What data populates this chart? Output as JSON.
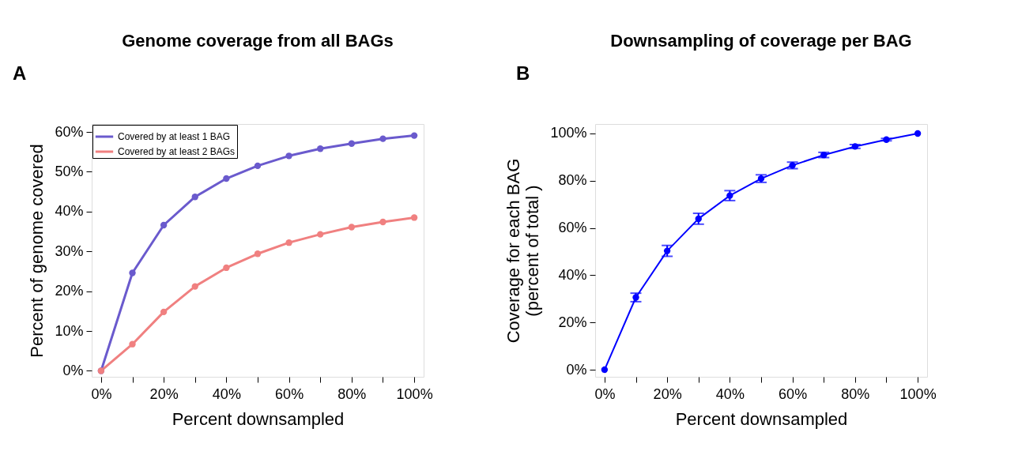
{
  "chart_data": [
    {
      "type": "line",
      "title": "Genome coverage from all BAGs",
      "xlabel": "Percent downsampled",
      "ylabel": "Percent of genome covered",
      "annotations": [
        "A"
      ],
      "x": [
        0,
        10,
        20,
        30,
        40,
        50,
        60,
        70,
        80,
        90,
        100
      ],
      "series": [
        {
          "name": "Covered by at least 1 BAG",
          "color": "#6a5acd",
          "values": [
            0,
            24.6,
            36.6,
            43.7,
            48.3,
            51.5,
            54.0,
            55.8,
            57.1,
            58.3,
            59.1
          ]
        },
        {
          "name": "Covered by at least 2 BAGs",
          "color": "#f08080",
          "values": [
            0,
            6.7,
            14.8,
            21.2,
            25.9,
            29.4,
            32.2,
            34.3,
            36.1,
            37.4,
            38.5
          ]
        }
      ],
      "xlim": [
        -3,
        103
      ],
      "ylim": [
        -1.5,
        62
      ],
      "xticks": [
        {
          "value": 0,
          "label": "0%"
        },
        {
          "value": 10,
          "label": null
        },
        {
          "value": 20,
          "label": "20%"
        },
        {
          "value": 30,
          "label": null
        },
        {
          "value": 40,
          "label": "40%"
        },
        {
          "value": 50,
          "label": null
        },
        {
          "value": 60,
          "label": "60%"
        },
        {
          "value": 70,
          "label": null
        },
        {
          "value": 80,
          "label": "80%"
        },
        {
          "value": 90,
          "label": null
        },
        {
          "value": 100,
          "label": "100%"
        }
      ],
      "yticks": [
        {
          "value": 0,
          "label": "0%"
        },
        {
          "value": 10,
          "label": "10%"
        },
        {
          "value": 20,
          "label": "20%"
        },
        {
          "value": 30,
          "label": "30%"
        },
        {
          "value": 40,
          "label": "40%"
        },
        {
          "value": 50,
          "label": "50%"
        },
        {
          "value": 60,
          "label": "60%"
        }
      ],
      "grid": false,
      "legend": "top left",
      "marker": "circle",
      "line_style": "solid"
    },
    {
      "type": "line",
      "title": "Downsampling of coverage per BAG",
      "xlabel": "Percent downsampled",
      "ylabel": "Coverage for each BAG\n(percent of total )",
      "annotations": [
        "B"
      ],
      "x": [
        0,
        10,
        20,
        30,
        40,
        50,
        60,
        70,
        80,
        90,
        100
      ],
      "series": [
        {
          "color": "#0000ff",
          "values": [
            0,
            30.6,
            50.3,
            63.9,
            73.7,
            80.9,
            86.5,
            90.9,
            94.5,
            97.4,
            100
          ],
          "errors": [
            null,
            1.8,
            2.3,
            2.3,
            2.1,
            1.6,
            1.4,
            1.1,
            0.8,
            0.5,
            null
          ]
        }
      ],
      "xlim": [
        -3,
        103
      ],
      "ylim": [
        -3,
        104
      ],
      "xticks": [
        {
          "value": 0,
          "label": "0%"
        },
        {
          "value": 10,
          "label": null
        },
        {
          "value": 20,
          "label": "20%"
        },
        {
          "value": 30,
          "label": null
        },
        {
          "value": 40,
          "label": "40%"
        },
        {
          "value": 50,
          "label": null
        },
        {
          "value": 60,
          "label": "60%"
        },
        {
          "value": 70,
          "label": null
        },
        {
          "value": 80,
          "label": "80%"
        },
        {
          "value": 90,
          "label": null
        },
        {
          "value": 100,
          "label": "100%"
        }
      ],
      "yticks": [
        {
          "value": 0,
          "label": "0%"
        },
        {
          "value": 20,
          "label": "20%"
        },
        {
          "value": 40,
          "label": "40%"
        },
        {
          "value": 60,
          "label": "60%"
        },
        {
          "value": 80,
          "label": "80%"
        },
        {
          "value": 100,
          "label": "100%"
        }
      ],
      "grid": false,
      "legend": false,
      "marker": "circle",
      "line_style": "solid"
    }
  ]
}
